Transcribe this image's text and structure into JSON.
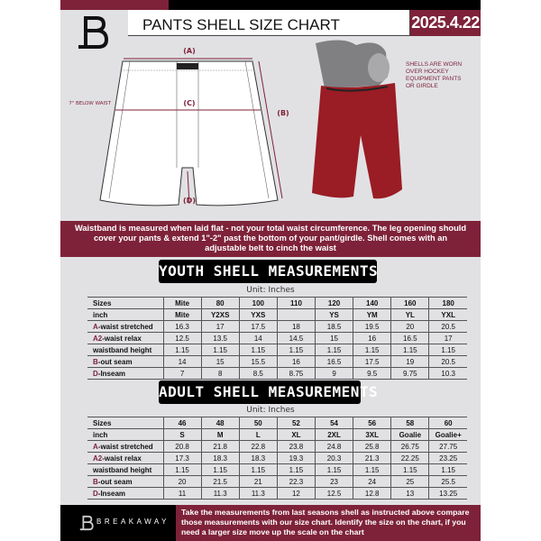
{
  "header": {
    "title": "PANTS SHELL SIZE CHART",
    "date": "2025.4.22"
  },
  "diagram": {
    "label_a": "(A)",
    "label_b": "(B)",
    "label_c": "(C)",
    "label_d": "(D)",
    "c_note": "7\" BELOW WAIST"
  },
  "product_note": "SHELLS ARE WORN OVER HOCKEY EQUIPMENT PANTS OR GIRDLE",
  "info_band": "Waistband is measured when laid flat - not your total waist circumference. The leg opening should cover your pants & extend 1\"-2\" past the bottom of your pant/girdle. Shell comes with an adjustable belt to cinch the waist",
  "youth": {
    "title": "YOUTH SHELL MEASUREMENTS",
    "unit": "Unit: Inches",
    "rows": [
      {
        "p": "",
        "l": "Sizes",
        "v": [
          "Mite",
          "80",
          "100",
          "110",
          "120",
          "140",
          "160",
          "180"
        ]
      },
      {
        "p": "",
        "l": "inch",
        "v": [
          "Mite",
          "Y2XS",
          "YXS",
          "",
          "YS",
          "YM",
          "YL",
          "YXL"
        ]
      },
      {
        "p": "A",
        "l": "-waist stretched",
        "v": [
          "16.3",
          "17",
          "17.5",
          "18",
          "18.5",
          "19.5",
          "20",
          "20.5"
        ]
      },
      {
        "p": "A2",
        "l": "-waist relax",
        "v": [
          "12.5",
          "13.5",
          "14",
          "14.5",
          "15",
          "16",
          "16.5",
          "17"
        ]
      },
      {
        "p": "",
        "l": "waistband height",
        "v": [
          "1.15",
          "1.15",
          "1.15",
          "1.15",
          "1.15",
          "1.15",
          "1.15",
          "1.15"
        ]
      },
      {
        "p": "B",
        "l": "-out seam",
        "v": [
          "14",
          "15",
          "15.5",
          "16",
          "16.5",
          "17.5",
          "19",
          "20.5"
        ]
      },
      {
        "p": "D",
        "l": "-Inseam",
        "v": [
          "7",
          "8",
          "8.5",
          "8.75",
          "9",
          "9.5",
          "9.75",
          "10.3"
        ]
      }
    ]
  },
  "adult": {
    "title": "ADULT SHELL MEASUREMENTS",
    "unit": "Unit: Inches",
    "rows": [
      {
        "p": "",
        "l": "Sizes",
        "v": [
          "46",
          "48",
          "50",
          "52",
          "54",
          "56",
          "58",
          "60"
        ]
      },
      {
        "p": "",
        "l": "inch",
        "v": [
          "S",
          "M",
          "L",
          "XL",
          "2XL",
          "3XL",
          "Goalie",
          "Goalie+"
        ]
      },
      {
        "p": "A",
        "l": "-waist stretched",
        "v": [
          "20.8",
          "21.8",
          "22.8",
          "23.8",
          "24.8",
          "25.8",
          "26.75",
          "27.75"
        ]
      },
      {
        "p": "A2",
        "l": "-waist relax",
        "v": [
          "17.3",
          "18.3",
          "18.3",
          "19.3",
          "20.3",
          "21.3",
          "22.25",
          "23.25"
        ]
      },
      {
        "p": "",
        "l": "waistband height",
        "v": [
          "1.15",
          "1.15",
          "1.15",
          "1.15",
          "1.15",
          "1.15",
          "1.15",
          "1.15"
        ]
      },
      {
        "p": "B",
        "l": "-out seam",
        "v": [
          "20",
          "21.5",
          "21",
          "22.3",
          "23",
          "24",
          "25",
          "25.5"
        ]
      },
      {
        "p": "D",
        "l": "-Inseam",
        "v": [
          "11",
          "11.3",
          "11.3",
          "12",
          "12.5",
          "12.8",
          "13",
          "13.25"
        ]
      }
    ]
  },
  "footer": {
    "brand": "BREAKAWAY",
    "text": "Take the measurements from last seasons shell as instructed above compare those measurements  with our size chart. Identify the size on the chart, if you need a larger size move up the scale on the chart"
  },
  "colors": {
    "accent": "#7e2239",
    "background": "#e1e1e4"
  }
}
